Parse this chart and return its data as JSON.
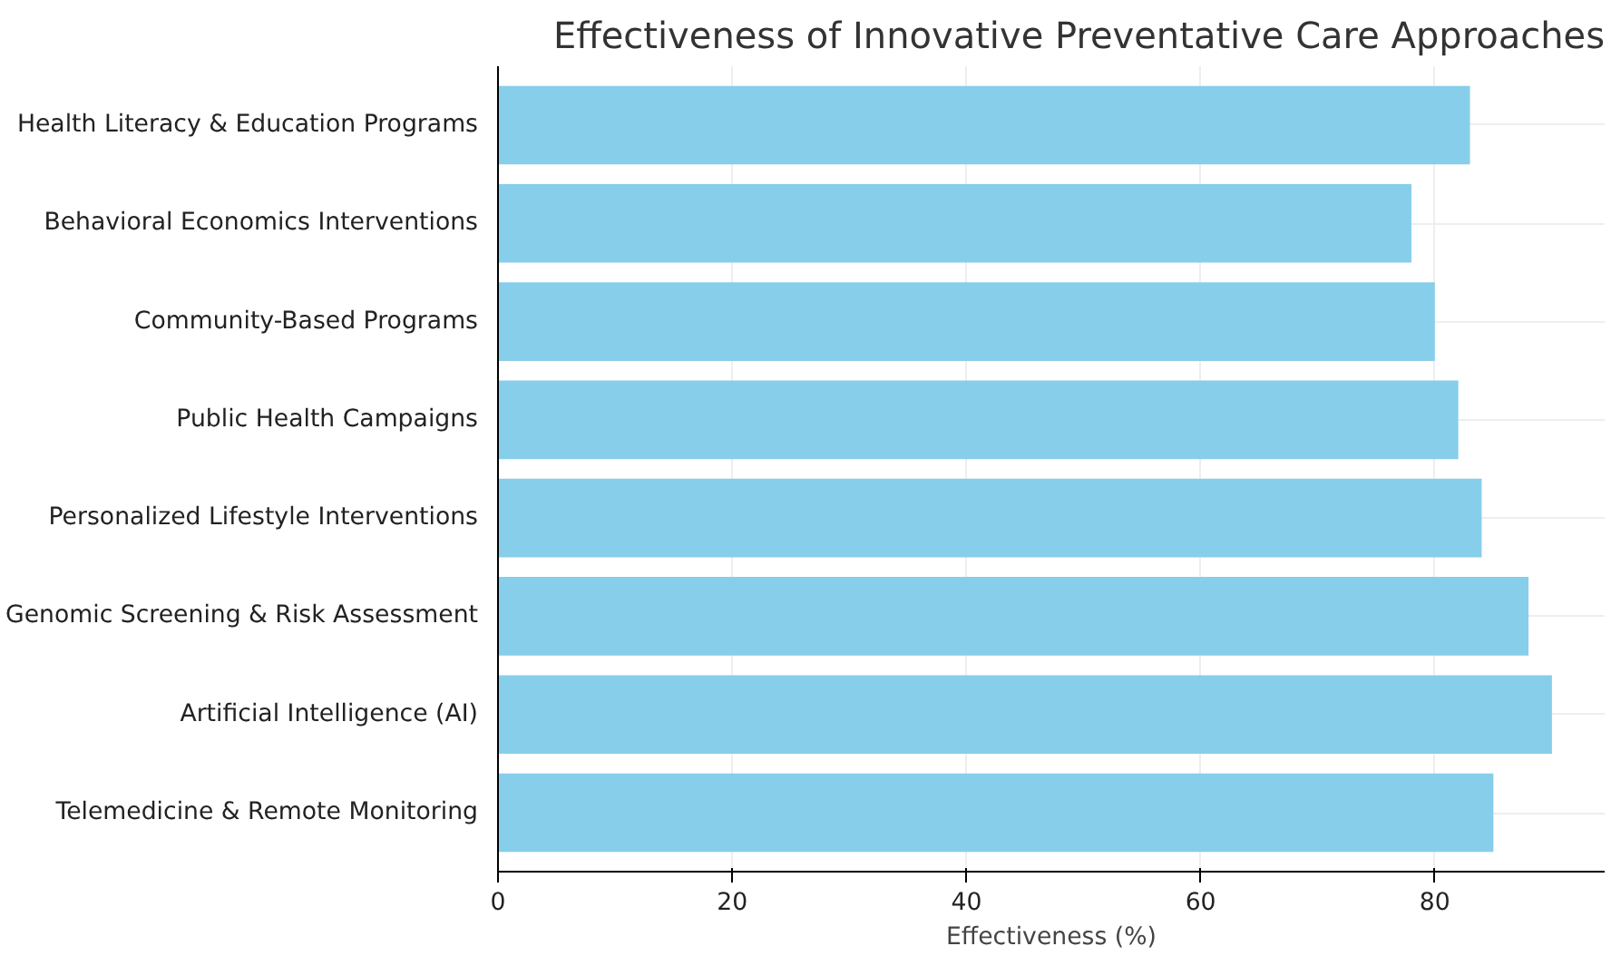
{
  "chart_data": {
    "type": "bar",
    "orientation": "horizontal",
    "title": "Effectiveness of Innovative Preventative Care Approaches",
    "xlabel": "Effectiveness (%)",
    "categories": [
      "Health Literacy & Education Programs",
      "Behavioral Economics Interventions",
      "Community-Based Programs",
      "Public Health Campaigns",
      "Personalized Lifestyle Interventions",
      "Genomic Screening & Risk Assessment",
      "Artificial Intelligence (AI)",
      "Telemedicine & Remote Monitoring"
    ],
    "values": [
      83,
      78,
      80,
      82,
      84,
      88,
      90,
      85
    ],
    "color": "#87ceeb",
    "xlim": [
      0,
      94.5
    ],
    "xticks": [
      0,
      20,
      40,
      60,
      80
    ],
    "grid": true
  }
}
